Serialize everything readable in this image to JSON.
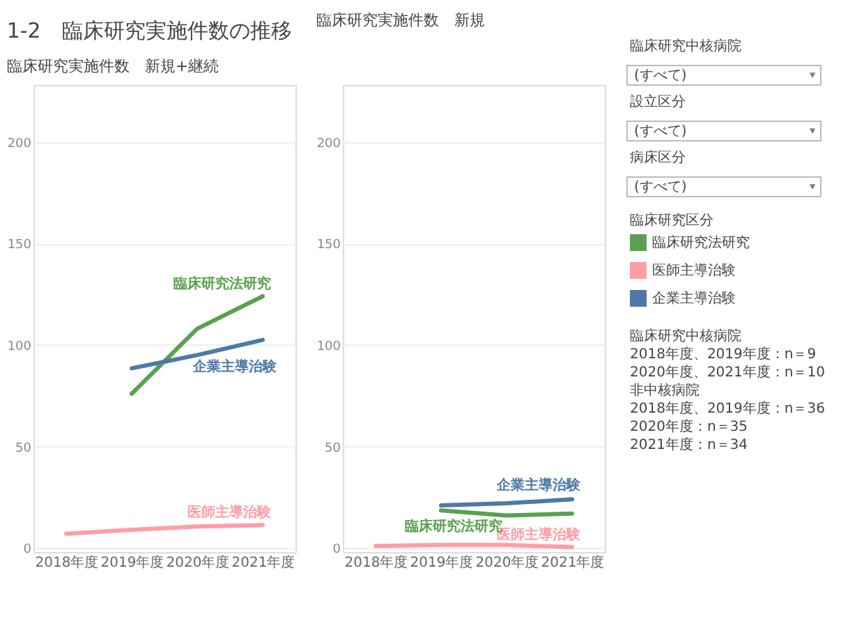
{
  "chart_data": [
    {
      "type": "line",
      "title": "1-2　臨床研究実施件数の推移",
      "subtitle": "臨床研究実施件数　新規+継続",
      "categories": [
        "2018年度",
        "2019年度",
        "2020年度",
        "2021年度"
      ],
      "series": [
        {
          "name": "臨床研究法研究",
          "color": "#59a14f",
          "values": [
            null,
            76,
            108,
            124
          ]
        },
        {
          "name": "医師主導治験",
          "color": "#ff9da7",
          "values": [
            7,
            9,
            10.6,
            11.3
          ]
        },
        {
          "name": "企業主導治験",
          "color": "#4e79a7",
          "values": [
            null,
            88.5,
            95,
            102.5
          ]
        }
      ],
      "ylim": [
        -2,
        228
      ],
      "yticks": [
        0,
        50,
        100,
        150,
        200
      ],
      "grid": "y"
    },
    {
      "type": "line",
      "title": "臨床研究実施件数　新規",
      "categories": [
        "2018年度",
        "2019年度",
        "2020年度",
        "2021年度"
      ],
      "series": [
        {
          "name": "臨床研究法研究",
          "color": "#59a14f",
          "values": [
            null,
            18.5,
            16,
            17
          ]
        },
        {
          "name": "医師主導治験",
          "color": "#ff9da7",
          "values": [
            1,
            1.5,
            1.5,
            0.5
          ]
        },
        {
          "name": "企業主導治験",
          "color": "#4e79a7",
          "values": [
            null,
            21,
            22,
            24
          ]
        }
      ],
      "ylim": [
        -2,
        228
      ],
      "yticks": [
        0,
        50,
        100,
        150,
        200
      ],
      "grid": "y",
      "legend": "right",
      "legend_title": "臨床研究区分",
      "annotations": [
        "臨床研究中核病院",
        "(すべて)",
        "設立区分",
        "(すべて)",
        "病床区分",
        "(すべて)",
        "臨床研究中核病院",
        "2018年度、2019年度：n＝9",
        "2020年度、2021年度：n＝10",
        "非中核病院",
        "2018年度、2019年度：n＝36",
        "2020年度：n＝35",
        "2021年度：n＝34"
      ]
    }
  ]
}
